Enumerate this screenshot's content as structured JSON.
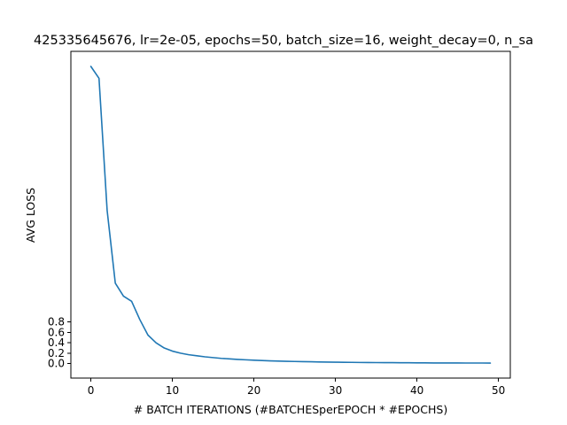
{
  "chart_data": {
    "type": "line",
    "title": "425335645676, lr=2e-05, epochs=50, batch_size=16, weight_decay=0, n_sa",
    "xlabel": "# BATCH ITERATIONS (#BATCHESperEPOCH * #EPOCHS)",
    "ylabel": "AVG LOSS",
    "xlim": [
      -2.45,
      51.45
    ],
    "ylim": [
      -0.28,
      6.02
    ],
    "grid": false,
    "legend": "none",
    "x_ticks": [
      0,
      10,
      20,
      30,
      40,
      50
    ],
    "y_ticks": [
      0.0,
      0.2,
      0.4,
      0.6,
      0.8
    ],
    "y_tick_labels": [
      "0.0",
      "0.2",
      "0.4",
      "0.6",
      "0.8"
    ],
    "series": [
      {
        "color": "#1f77b4",
        "x": [
          0,
          1,
          2,
          3,
          4,
          5,
          6,
          7,
          8,
          9,
          10,
          11,
          12,
          13,
          14,
          15,
          16,
          17,
          18,
          19,
          20,
          21,
          22,
          23,
          24,
          25,
          26,
          27,
          28,
          29,
          30,
          31,
          32,
          33,
          34,
          35,
          36,
          37,
          38,
          39,
          40,
          41,
          42,
          43,
          44,
          45,
          46,
          47,
          48,
          49
        ],
        "y": [
          5.73,
          5.5,
          2.95,
          1.55,
          1.3,
          1.2,
          0.85,
          0.55,
          0.4,
          0.3,
          0.24,
          0.2,
          0.17,
          0.15,
          0.13,
          0.115,
          0.1,
          0.09,
          0.08,
          0.072,
          0.065,
          0.058,
          0.052,
          0.047,
          0.043,
          0.04,
          0.037,
          0.034,
          0.031,
          0.029,
          0.027,
          0.025,
          0.023,
          0.021,
          0.02,
          0.019,
          0.018,
          0.017,
          0.016,
          0.015,
          0.014,
          0.013,
          0.012,
          0.012,
          0.011,
          0.011,
          0.01,
          0.01,
          0.01,
          0.009
        ]
      }
    ]
  }
}
